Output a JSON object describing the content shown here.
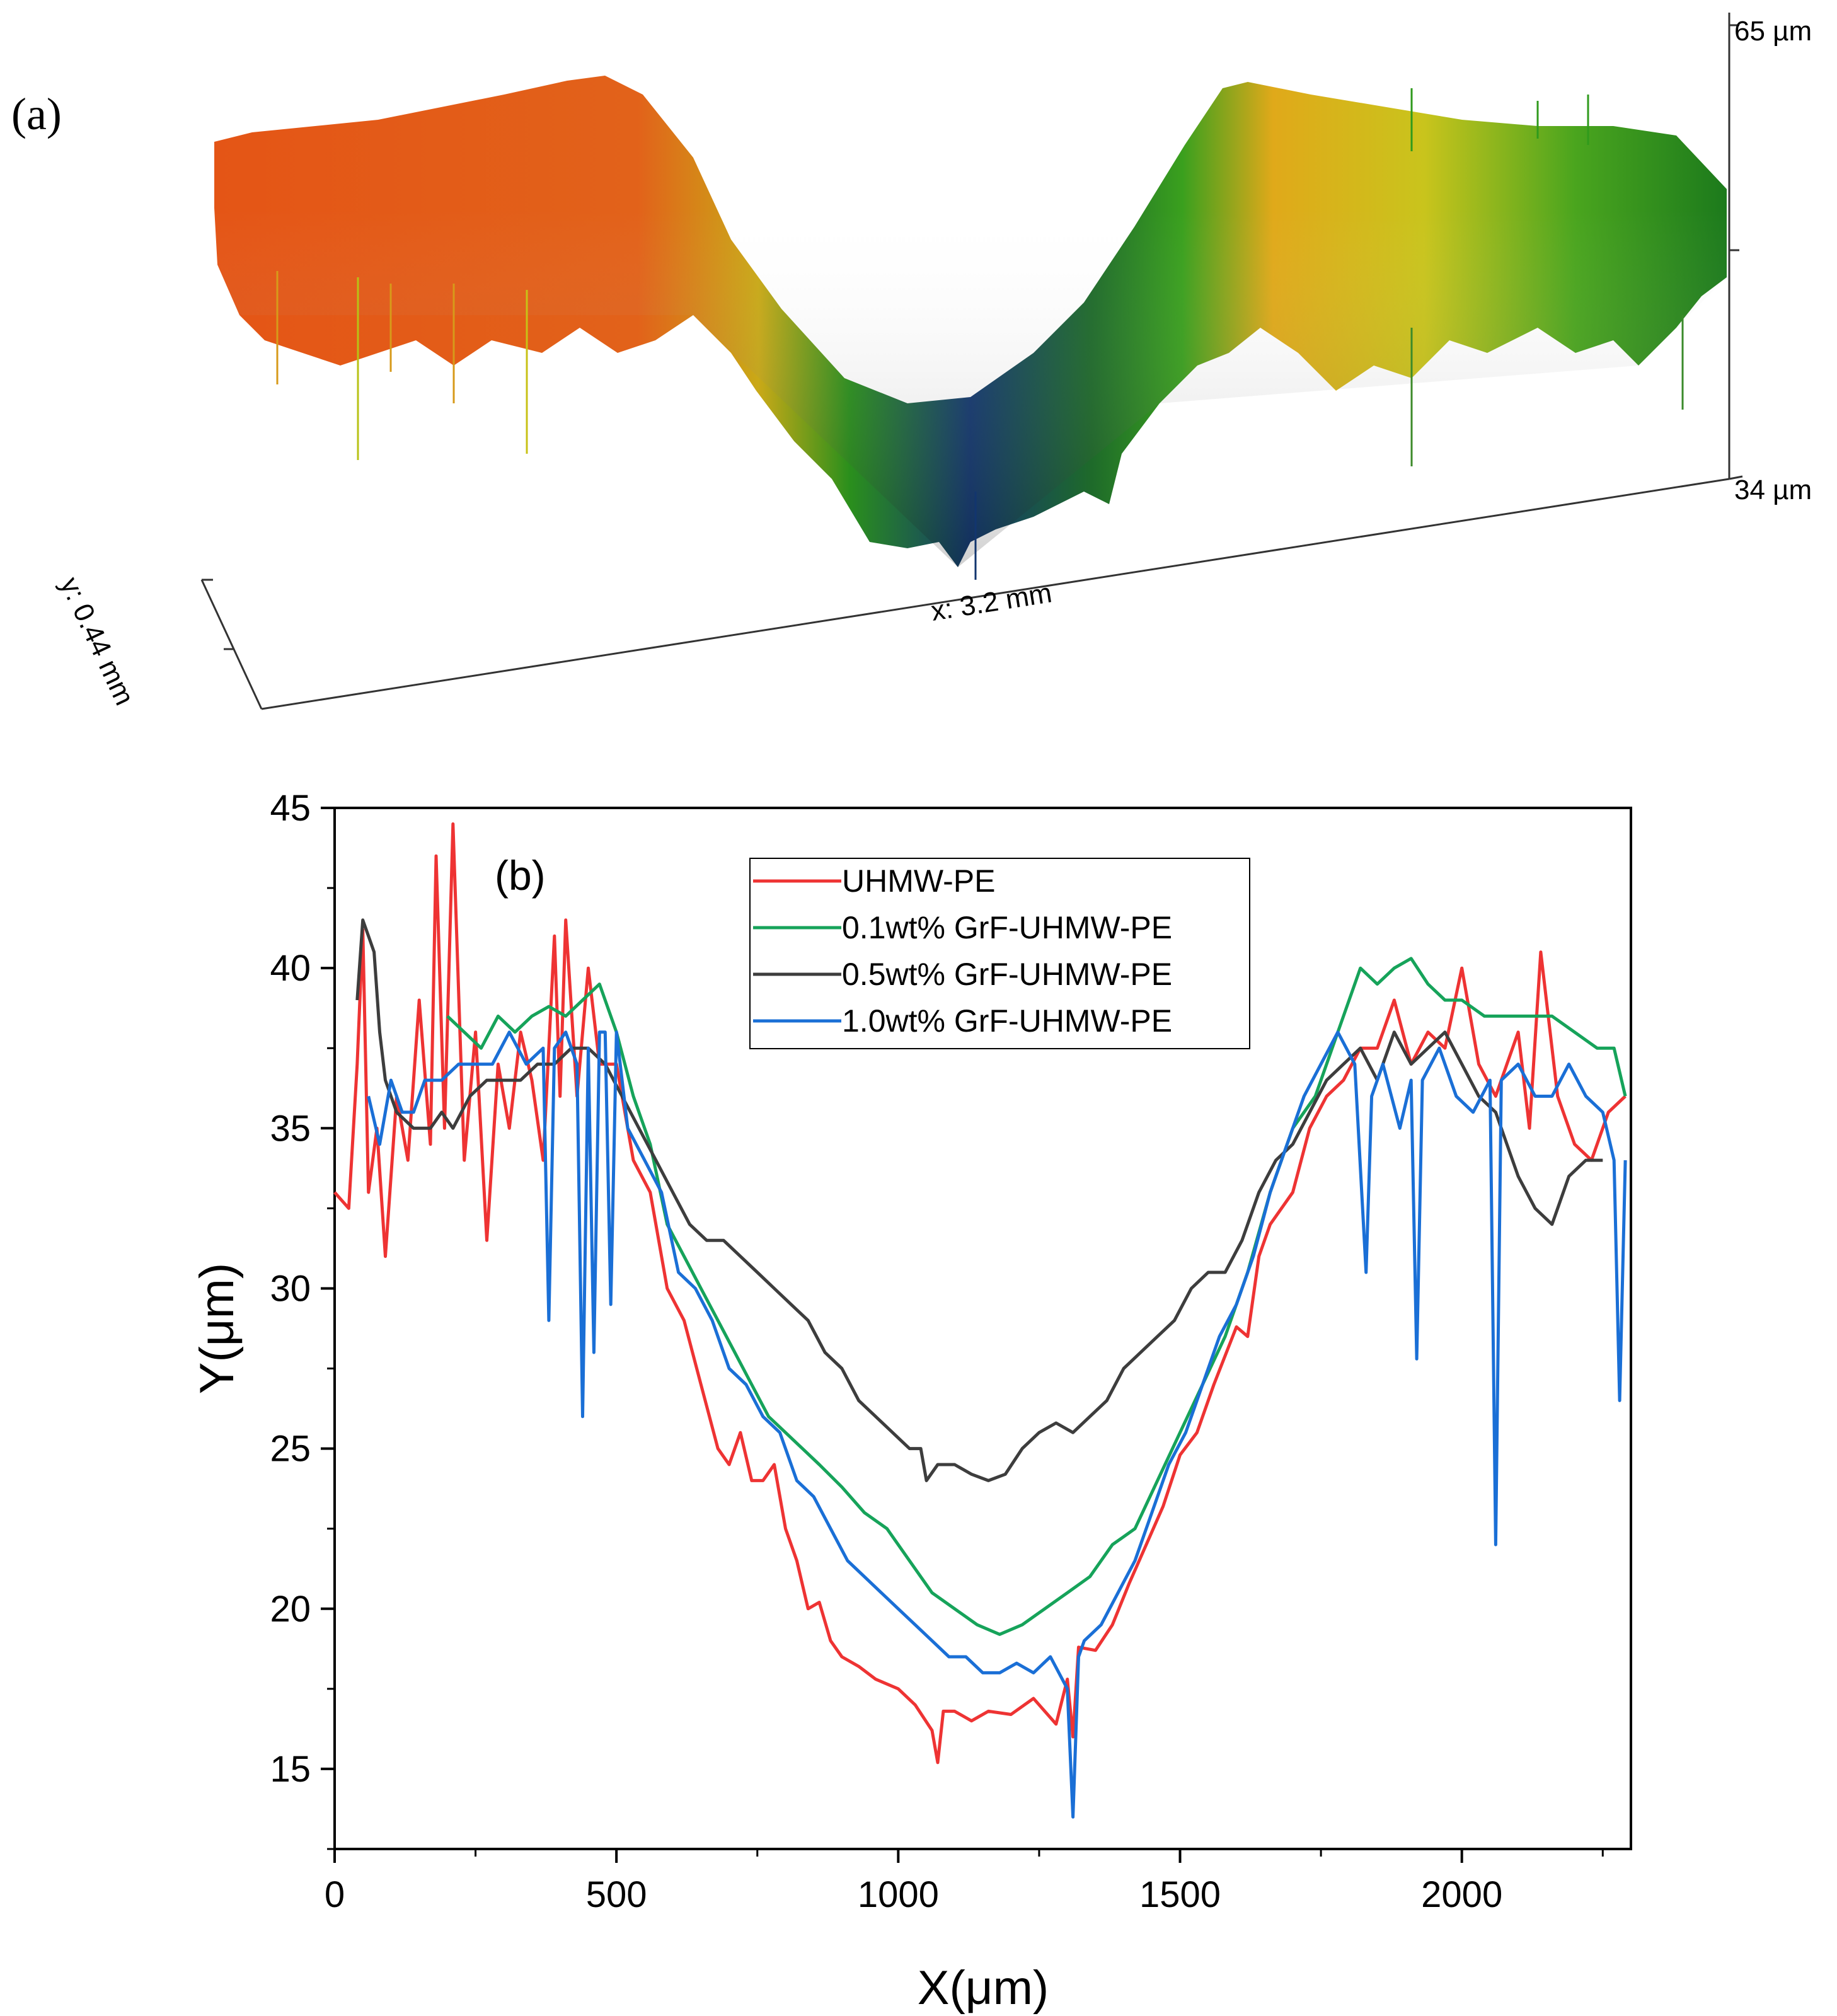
{
  "panel_a": {
    "label": "(a)",
    "z_max_label": "65 µm",
    "z_min_label": "34 µm",
    "x_label": "x: 3.2 mm",
    "y_label": "y: 0.44 mm",
    "colors": {
      "high": "#e0541a",
      "mid": "#e2b312",
      "green": "#1f9a1a",
      "low": "#12356e"
    }
  },
  "chart_data": {
    "type": "line",
    "panel_label": "(b)",
    "xlabel": "X(μm)",
    "ylabel": "Y(μm)",
    "xlim": [
      0,
      2300
    ],
    "ylim": [
      12.5,
      45
    ],
    "xticks": [
      0,
      500,
      1000,
      1500,
      2000
    ],
    "yticks": [
      15,
      20,
      25,
      30,
      35,
      40,
      45
    ],
    "legend_position": "top-center",
    "series": [
      {
        "name": "UHMW-PE",
        "color": "#ee3333",
        "x": [
          0,
          25,
          40,
          50,
          60,
          75,
          90,
          110,
          130,
          150,
          170,
          180,
          195,
          210,
          230,
          250,
          270,
          290,
          310,
          330,
          350,
          370,
          390,
          400,
          410,
          430,
          450,
          470,
          500,
          530,
          560,
          590,
          620,
          650,
          680,
          700,
          720,
          740,
          760,
          780,
          800,
          820,
          840,
          860,
          880,
          900,
          930,
          960,
          1000,
          1030,
          1060,
          1070,
          1080,
          1100,
          1130,
          1160,
          1200,
          1240,
          1280,
          1300,
          1310,
          1320,
          1350,
          1380,
          1410,
          1440,
          1470,
          1500,
          1530,
          1560,
          1600,
          1620,
          1640,
          1660,
          1700,
          1730,
          1760,
          1790,
          1820,
          1850,
          1880,
          1910,
          1940,
          1970,
          2000,
          2030,
          2060,
          2080,
          2100,
          2120,
          2140,
          2170,
          2200,
          2230,
          2260,
          2290
        ],
        "values": [
          33,
          32.5,
          37,
          41.2,
          33,
          35,
          31,
          36,
          34,
          39,
          34.5,
          43.5,
          35,
          44.5,
          34,
          38,
          31.5,
          37,
          35,
          38,
          36.5,
          34,
          41,
          36,
          41.5,
          36,
          40,
          37,
          37,
          34,
          33,
          30,
          29,
          27,
          25,
          24.5,
          25.5,
          24,
          24,
          24.5,
          22.5,
          21.5,
          20,
          20.2,
          19,
          18.5,
          18.2,
          17.8,
          17.5,
          17,
          16.2,
          15.2,
          16.8,
          16.8,
          16.5,
          16.8,
          16.7,
          17.2,
          16.4,
          17.8,
          16.0,
          18.8,
          18.7,
          19.5,
          20.8,
          22,
          23.2,
          24.8,
          25.5,
          27,
          28.8,
          28.5,
          31,
          32,
          33,
          35,
          36,
          36.5,
          37.5,
          37.5,
          39,
          37,
          38,
          37.5,
          40,
          37,
          36,
          37,
          38,
          35,
          40.5,
          36,
          34.5,
          34,
          35.5,
          36
        ]
      },
      {
        "name": "0.1wt% GrF-UHMW-PE",
        "color": "#16a35a",
        "x": [
          200,
          230,
          260,
          290,
          320,
          350,
          380,
          410,
          440,
          470,
          500,
          530,
          560,
          590,
          620,
          650,
          680,
          710,
          740,
          770,
          800,
          830,
          860,
          900,
          940,
          980,
          1020,
          1060,
          1100,
          1140,
          1180,
          1220,
          1260,
          1300,
          1340,
          1380,
          1420,
          1460,
          1500,
          1540,
          1580,
          1620,
          1660,
          1700,
          1740,
          1780,
          1820,
          1850,
          1880,
          1910,
          1940,
          1970,
          2000,
          2040,
          2080,
          2120,
          2160,
          2200,
          2240,
          2270,
          2290
        ],
        "values": [
          38.5,
          38,
          37.5,
          38.5,
          38,
          38.5,
          38.8,
          38.5,
          39,
          39.5,
          38,
          36,
          34.5,
          32,
          31,
          30,
          29,
          28,
          27,
          26,
          25.5,
          25,
          24.5,
          23.8,
          23,
          22.5,
          21.5,
          20.5,
          20,
          19.5,
          19.2,
          19.5,
          20,
          20.5,
          21,
          22,
          22.5,
          24,
          25.5,
          27,
          28.5,
          30.5,
          33,
          35,
          36,
          38,
          40,
          39.5,
          40,
          40.3,
          39.5,
          39,
          39,
          38.5,
          38.5,
          38.5,
          38.5,
          38,
          37.5,
          37.5,
          36
        ]
      },
      {
        "name": "0.5wt% GrF-UHMW-PE",
        "color": "#3d3d3d",
        "x": [
          40,
          50,
          60,
          70,
          80,
          90,
          110,
          140,
          170,
          190,
          210,
          240,
          270,
          300,
          330,
          360,
          390,
          420,
          450,
          480,
          510,
          540,
          570,
          600,
          630,
          660,
          690,
          720,
          750,
          780,
          810,
          840,
          870,
          900,
          930,
          960,
          990,
          1020,
          1040,
          1050,
          1070,
          1100,
          1130,
          1160,
          1190,
          1220,
          1250,
          1280,
          1310,
          1340,
          1370,
          1400,
          1430,
          1460,
          1490,
          1520,
          1550,
          1580,
          1610,
          1640,
          1670,
          1700,
          1730,
          1760,
          1790,
          1820,
          1850,
          1880,
          1910,
          1940,
          1970,
          2000,
          2030,
          2060,
          2080,
          2100,
          2130,
          2160,
          2190,
          2220,
          2250
        ],
        "values": [
          39,
          41.5,
          41,
          40.5,
          38,
          36.5,
          35.5,
          35,
          35,
          35.5,
          35,
          36,
          36.5,
          36.5,
          36.5,
          37,
          37,
          37.5,
          37.5,
          37,
          36,
          35,
          34,
          33,
          32,
          31.5,
          31.5,
          31,
          30.5,
          30,
          29.5,
          29,
          28,
          27.5,
          26.5,
          26,
          25.5,
          25,
          25,
          24,
          24.5,
          24.5,
          24.2,
          24,
          24.2,
          25,
          25.5,
          25.8,
          25.5,
          26,
          26.5,
          27.5,
          28,
          28.5,
          29,
          30,
          30.5,
          30.5,
          31.5,
          33,
          34,
          34.5,
          35.5,
          36.5,
          37,
          37.5,
          36.5,
          38,
          37,
          37.5,
          38,
          37,
          36,
          35.5,
          34.5,
          33.5,
          32.5,
          32,
          33.5,
          34,
          34
        ]
      },
      {
        "name": "1.0wt% GrF-UHMW-PE",
        "color": "#1a6fd6",
        "x": [
          60,
          80,
          100,
          120,
          140,
          160,
          190,
          220,
          250,
          280,
          310,
          340,
          370,
          380,
          390,
          410,
          430,
          440,
          450,
          460,
          470,
          480,
          490,
          500,
          520,
          550,
          580,
          610,
          640,
          670,
          700,
          730,
          760,
          790,
          820,
          850,
          880,
          910,
          940,
          970,
          1000,
          1030,
          1060,
          1090,
          1120,
          1150,
          1180,
          1210,
          1240,
          1270,
          1300,
          1310,
          1320,
          1330,
          1360,
          1390,
          1420,
          1450,
          1480,
          1510,
          1540,
          1570,
          1600,
          1630,
          1660,
          1690,
          1720,
          1750,
          1780,
          1810,
          1830,
          1840,
          1860,
          1890,
          1910,
          1920,
          1930,
          1960,
          1990,
          2020,
          2050,
          2060,
          2070,
          2100,
          2130,
          2160,
          2190,
          2220,
          2250,
          2270,
          2280,
          2290
        ],
        "values": [
          36,
          34.5,
          36.5,
          35.5,
          35.5,
          36.5,
          36.5,
          37,
          37,
          37,
          38,
          37,
          37.5,
          29,
          37.5,
          38,
          37,
          26,
          37.5,
          28,
          38,
          38,
          29.5,
          38,
          35,
          34,
          33,
          30.5,
          30,
          29,
          27.5,
          27,
          26,
          25.5,
          24,
          23.5,
          22.5,
          21.5,
          21,
          20.5,
          20,
          19.5,
          19,
          18.5,
          18.5,
          18,
          18,
          18.3,
          18,
          18.5,
          17.5,
          13.5,
          18.5,
          19,
          19.5,
          20.5,
          21.5,
          23,
          24.5,
          25.5,
          27,
          28.5,
          29.5,
          31,
          33,
          34.5,
          36,
          37,
          38,
          37,
          30.5,
          36,
          37,
          35,
          36.5,
          27.8,
          36.5,
          37.5,
          36,
          35.5,
          36.5,
          22,
          36.5,
          37,
          36,
          36,
          37,
          36,
          35.5,
          34,
          26.5,
          34
        ]
      }
    ]
  }
}
